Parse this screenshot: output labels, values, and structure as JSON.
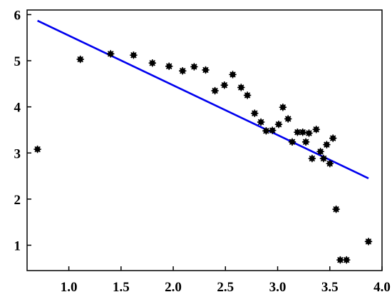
{
  "chart_data": {
    "type": "scatter",
    "title": "",
    "xlabel": "",
    "ylabel": "",
    "xlim": [
      0.6,
      4.0
    ],
    "ylim": [
      0.45,
      6.1
    ],
    "xticks": [
      1.0,
      1.5,
      2.0,
      2.5,
      3.0,
      3.5,
      4.0
    ],
    "xtick_labels": [
      "1.0",
      "1.5",
      "2.0",
      "2.5",
      "3.0",
      "3.5",
      "4.0"
    ],
    "yticks": [
      1,
      2,
      3,
      4,
      5,
      6
    ],
    "ytick_labels": [
      "1",
      "2",
      "3",
      "4",
      "5",
      "6"
    ],
    "grid": false,
    "series": [
      {
        "kind": "scatter",
        "color": "#000000",
        "points": [
          [
            0.7,
            3.08
          ],
          [
            1.11,
            5.03
          ],
          [
            1.4,
            5.15
          ],
          [
            1.62,
            5.12
          ],
          [
            1.8,
            4.95
          ],
          [
            1.96,
            4.88
          ],
          [
            2.09,
            4.78
          ],
          [
            2.2,
            4.87
          ],
          [
            2.31,
            4.8
          ],
          [
            2.4,
            4.35
          ],
          [
            2.49,
            4.47
          ],
          [
            2.57,
            4.7
          ],
          [
            2.65,
            4.42
          ],
          [
            2.71,
            4.25
          ],
          [
            2.78,
            3.86
          ],
          [
            2.84,
            3.67
          ],
          [
            2.89,
            3.48
          ],
          [
            2.95,
            3.49
          ],
          [
            3.01,
            3.62
          ],
          [
            3.05,
            3.99
          ],
          [
            3.1,
            3.74
          ],
          [
            3.14,
            3.24
          ],
          [
            3.19,
            3.45
          ],
          [
            3.24,
            3.45
          ],
          [
            3.27,
            3.24
          ],
          [
            3.3,
            3.43
          ],
          [
            3.33,
            2.88
          ],
          [
            3.37,
            3.51
          ],
          [
            3.41,
            3.03
          ],
          [
            3.44,
            2.88
          ],
          [
            3.47,
            3.18
          ],
          [
            3.5,
            2.77
          ],
          [
            3.53,
            3.32
          ],
          [
            3.56,
            1.78
          ],
          [
            3.6,
            0.68
          ],
          [
            3.66,
            0.68
          ],
          [
            3.87,
            1.08
          ]
        ]
      },
      {
        "kind": "line",
        "color": "#0000ee",
        "points": [
          [
            0.7,
            5.87
          ],
          [
            3.87,
            2.45
          ]
        ]
      }
    ]
  }
}
